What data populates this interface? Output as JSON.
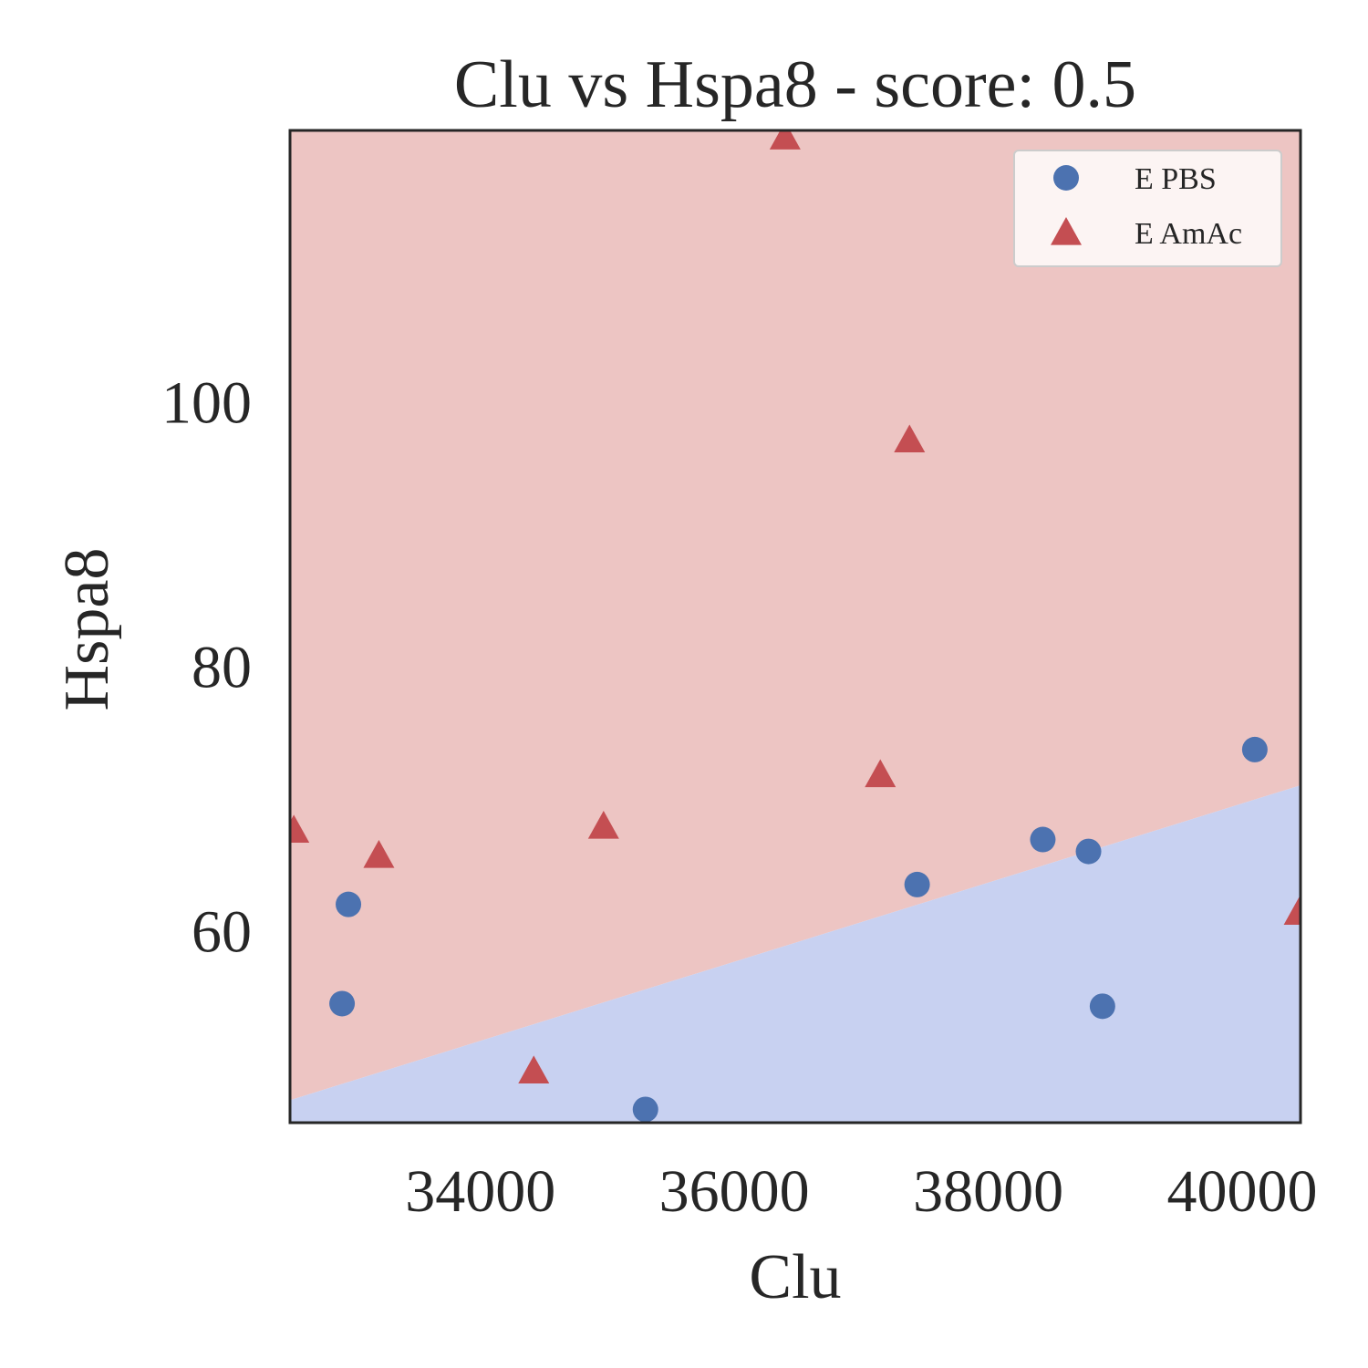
{
  "chart_data": {
    "type": "scatter",
    "title": "Clu vs Hspa8 - score: 0.5",
    "xlabel": "Clu",
    "ylabel": "Hspa8",
    "xlim": [
      32500,
      40460
    ],
    "ylim": [
      45.5,
      120.5
    ],
    "x_ticks": [
      34000,
      36000,
      38000,
      40000
    ],
    "y_ticks": [
      60,
      80,
      100
    ],
    "grid": false,
    "legend_position": "upper right",
    "decision_boundary": {
      "upper_region_class": "E AmAc",
      "lower_region_class": "E PBS",
      "upper_region_color": "#EDC5C3",
      "lower_region_color": "#C8D1F1",
      "line": [
        [
          32500,
          47.2
        ],
        [
          40460,
          71.0
        ]
      ]
    },
    "series": [
      {
        "name": "E PBS",
        "marker": "circle",
        "color": "#4C72B0",
        "points": [
          [
            32960,
            62.0
          ],
          [
            32910,
            54.5
          ],
          [
            35300,
            46.5
          ],
          [
            37440,
            63.5
          ],
          [
            38430,
            66.9
          ],
          [
            38790,
            66.0
          ],
          [
            38900,
            54.3
          ],
          [
            40100,
            73.7
          ]
        ]
      },
      {
        "name": "E AmAc",
        "marker": "triangle",
        "color": "#C44E52",
        "points": [
          [
            32530,
            67.6
          ],
          [
            33200,
            65.7
          ],
          [
            34970,
            67.9
          ],
          [
            34420,
            49.4
          ],
          [
            36400,
            120.0
          ],
          [
            37150,
            71.8
          ],
          [
            37380,
            97.1
          ],
          [
            40450,
            61.4
          ]
        ]
      }
    ]
  }
}
